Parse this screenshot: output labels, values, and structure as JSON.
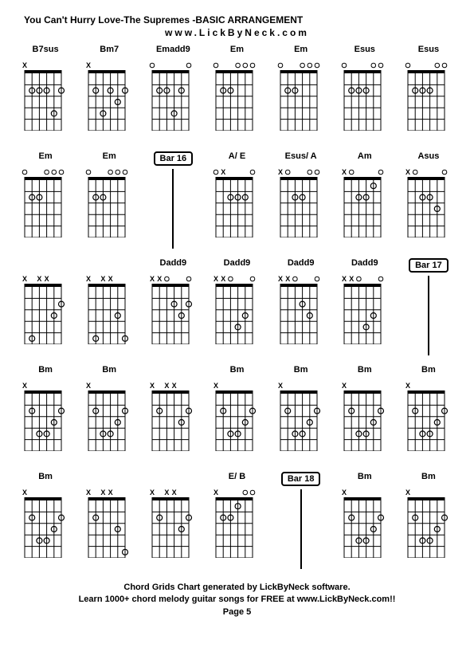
{
  "title": "You Can't Hurry Love-The Supremes -BASIC ARRANGEMENT",
  "subtitle": "www.LickByNeck.com",
  "footer_line1": "Chord Grids Chart generated by LickByNeck software.",
  "footer_line2": "Learn 1000+ chord melody guitar songs for FREE at www.LickByNeck.com!!",
  "page_label": "Page 5",
  "diagram": {
    "width": 58,
    "height": 90,
    "strings": 6,
    "frets": 5,
    "nut_height": 4,
    "line_color": "#000000",
    "dot_radius": 3.5,
    "open_radius": 2.8,
    "x_fontsize": 9
  },
  "cells": [
    {
      "type": "chord",
      "label": "B7sus",
      "mutes": [
        1,
        0,
        0,
        0,
        0,
        0
      ],
      "opens": [
        0,
        0,
        0,
        0,
        0,
        0
      ],
      "dots": [
        [
          2,
          2
        ],
        [
          3,
          2
        ],
        [
          4,
          2
        ],
        [
          5,
          4
        ],
        [
          6,
          2
        ]
      ]
    },
    {
      "type": "chord",
      "label": "Bm7",
      "mutes": [
        1,
        0,
        0,
        0,
        0,
        0
      ],
      "opens": [
        0,
        0,
        0,
        0,
        0,
        0
      ],
      "dots": [
        [
          2,
          2
        ],
        [
          3,
          4
        ],
        [
          4,
          2
        ],
        [
          5,
          3
        ],
        [
          6,
          2
        ]
      ]
    },
    {
      "type": "chord",
      "label": "Emadd9",
      "mutes": [
        0,
        0,
        0,
        0,
        0,
        0
      ],
      "opens": [
        1,
        0,
        0,
        0,
        0,
        1
      ],
      "dots": [
        [
          2,
          2
        ],
        [
          3,
          2
        ],
        [
          4,
          4
        ],
        [
          5,
          2
        ]
      ]
    },
    {
      "type": "chord",
      "label": "Em",
      "mutes": [
        0,
        0,
        0,
        0,
        0,
        0
      ],
      "opens": [
        1,
        0,
        0,
        1,
        1,
        1
      ],
      "dots": [
        [
          2,
          2
        ],
        [
          3,
          2
        ]
      ]
    },
    {
      "type": "chord",
      "label": "Em",
      "mutes": [
        0,
        0,
        0,
        0,
        0,
        0
      ],
      "opens": [
        1,
        0,
        0,
        1,
        1,
        1
      ],
      "dots": [
        [
          2,
          2
        ],
        [
          3,
          2
        ]
      ]
    },
    {
      "type": "chord",
      "label": "Esus",
      "mutes": [
        0,
        0,
        0,
        0,
        0,
        0
      ],
      "opens": [
        1,
        0,
        0,
        0,
        1,
        1
      ],
      "dots": [
        [
          2,
          2
        ],
        [
          3,
          2
        ],
        [
          4,
          2
        ]
      ]
    },
    {
      "type": "chord",
      "label": "Esus",
      "mutes": [
        0,
        0,
        0,
        0,
        0,
        0
      ],
      "opens": [
        1,
        0,
        0,
        0,
        1,
        1
      ],
      "dots": [
        [
          2,
          2
        ],
        [
          3,
          2
        ],
        [
          4,
          2
        ]
      ]
    },
    {
      "type": "chord",
      "label": "Em",
      "mutes": [
        0,
        0,
        0,
        0,
        0,
        0
      ],
      "opens": [
        1,
        0,
        0,
        1,
        1,
        1
      ],
      "dots": [
        [
          2,
          2
        ],
        [
          3,
          2
        ]
      ]
    },
    {
      "type": "chord",
      "label": "Em",
      "mutes": [
        0,
        0,
        0,
        0,
        0,
        0
      ],
      "opens": [
        1,
        0,
        0,
        1,
        1,
        1
      ],
      "dots": [
        [
          2,
          2
        ],
        [
          3,
          2
        ]
      ]
    },
    {
      "type": "bar",
      "label": "Bar 16"
    },
    {
      "type": "chord",
      "label": "A/ E",
      "mutes": [
        0,
        1,
        0,
        0,
        0,
        0
      ],
      "opens": [
        1,
        0,
        0,
        0,
        0,
        1
      ],
      "dots": [
        [
          3,
          2
        ],
        [
          4,
          2
        ],
        [
          5,
          2
        ]
      ]
    },
    {
      "type": "chord",
      "label": "Esus/ A",
      "mutes": [
        1,
        0,
        0,
        0,
        0,
        0
      ],
      "opens": [
        0,
        1,
        0,
        0,
        1,
        1
      ],
      "dots": [
        [
          3,
          2
        ],
        [
          4,
          2
        ]
      ]
    },
    {
      "type": "chord",
      "label": "Am",
      "mutes": [
        1,
        0,
        0,
        0,
        0,
        0
      ],
      "opens": [
        0,
        1,
        0,
        0,
        0,
        1
      ],
      "dots": [
        [
          3,
          2
        ],
        [
          4,
          2
        ],
        [
          5,
          1
        ]
      ]
    },
    {
      "type": "chord",
      "label": "Asus",
      "mutes": [
        1,
        0,
        0,
        0,
        0,
        0
      ],
      "opens": [
        0,
        1,
        0,
        0,
        0,
        1
      ],
      "dots": [
        [
          3,
          2
        ],
        [
          4,
          2
        ],
        [
          5,
          3
        ]
      ]
    },
    {
      "type": "chord",
      "label": "",
      "mutes": [
        1,
        0,
        1,
        1,
        0,
        0
      ],
      "opens": [
        0,
        0,
        0,
        0,
        0,
        0
      ],
      "dots": [
        [
          2,
          5
        ],
        [
          5,
          3
        ],
        [
          6,
          2
        ]
      ]
    },
    {
      "type": "chord",
      "label": "",
      "mutes": [
        1,
        0,
        1,
        1,
        0,
        0
      ],
      "opens": [
        0,
        0,
        0,
        0,
        0,
        0
      ],
      "dots": [
        [
          2,
          5
        ],
        [
          5,
          3
        ],
        [
          6,
          5
        ]
      ]
    },
    {
      "type": "chord",
      "label": "Dadd9",
      "mutes": [
        1,
        1,
        0,
        0,
        0,
        0
      ],
      "opens": [
        0,
        0,
        1,
        0,
        0,
        1
      ],
      "dots": [
        [
          4,
          2
        ],
        [
          5,
          3
        ],
        [
          6,
          2
        ]
      ]
    },
    {
      "type": "chord",
      "label": "Dadd9",
      "mutes": [
        1,
        1,
        0,
        0,
        0,
        0
      ],
      "opens": [
        0,
        0,
        1,
        0,
        0,
        1
      ],
      "dots": [
        [
          4,
          4
        ],
        [
          5,
          3
        ]
      ]
    },
    {
      "type": "chord",
      "label": "Dadd9",
      "mutes": [
        1,
        1,
        0,
        0,
        0,
        0
      ],
      "opens": [
        0,
        0,
        1,
        0,
        0,
        1
      ],
      "dots": [
        [
          4,
          2
        ],
        [
          5,
          3
        ]
      ]
    },
    {
      "type": "chord",
      "label": "Dadd9",
      "mutes": [
        1,
        1,
        0,
        0,
        0,
        0
      ],
      "opens": [
        0,
        0,
        1,
        0,
        0,
        1
      ],
      "dots": [
        [
          4,
          4
        ],
        [
          5,
          3
        ]
      ]
    },
    {
      "type": "bar",
      "label": "Bar 17"
    },
    {
      "type": "chord",
      "label": "Bm",
      "mutes": [
        1,
        0,
        0,
        0,
        0,
        0
      ],
      "opens": [
        0,
        0,
        0,
        0,
        0,
        0
      ],
      "dots": [
        [
          2,
          2
        ],
        [
          3,
          4
        ],
        [
          4,
          4
        ],
        [
          5,
          3
        ],
        [
          6,
          2
        ]
      ]
    },
    {
      "type": "chord",
      "label": "Bm",
      "mutes": [
        1,
        0,
        0,
        0,
        0,
        0
      ],
      "opens": [
        0,
        0,
        0,
        0,
        0,
        0
      ],
      "dots": [
        [
          2,
          2
        ],
        [
          3,
          4
        ],
        [
          4,
          4
        ],
        [
          5,
          3
        ],
        [
          6,
          2
        ]
      ]
    },
    {
      "type": "chord",
      "label": "",
      "mutes": [
        1,
        0,
        1,
        1,
        0,
        0
      ],
      "opens": [
        0,
        0,
        0,
        0,
        0,
        0
      ],
      "dots": [
        [
          2,
          2
        ],
        [
          5,
          3
        ],
        [
          6,
          2
        ]
      ]
    },
    {
      "type": "chord",
      "label": "Bm",
      "mutes": [
        1,
        0,
        0,
        0,
        0,
        0
      ],
      "opens": [
        0,
        0,
        0,
        0,
        0,
        0
      ],
      "dots": [
        [
          2,
          2
        ],
        [
          3,
          4
        ],
        [
          4,
          4
        ],
        [
          5,
          3
        ],
        [
          6,
          2
        ]
      ]
    },
    {
      "type": "chord",
      "label": "Bm",
      "mutes": [
        1,
        0,
        0,
        0,
        0,
        0
      ],
      "opens": [
        0,
        0,
        0,
        0,
        0,
        0
      ],
      "dots": [
        [
          2,
          2
        ],
        [
          3,
          4
        ],
        [
          4,
          4
        ],
        [
          5,
          3
        ],
        [
          6,
          2
        ]
      ]
    },
    {
      "type": "chord",
      "label": "Bm",
      "mutes": [
        1,
        0,
        0,
        0,
        0,
        0
      ],
      "opens": [
        0,
        0,
        0,
        0,
        0,
        0
      ],
      "dots": [
        [
          2,
          2
        ],
        [
          3,
          4
        ],
        [
          4,
          4
        ],
        [
          5,
          3
        ],
        [
          6,
          2
        ]
      ]
    },
    {
      "type": "chord",
      "label": "Bm",
      "mutes": [
        1,
        0,
        0,
        0,
        0,
        0
      ],
      "opens": [
        0,
        0,
        0,
        0,
        0,
        0
      ],
      "dots": [
        [
          2,
          2
        ],
        [
          3,
          4
        ],
        [
          4,
          4
        ],
        [
          5,
          3
        ],
        [
          6,
          2
        ]
      ]
    },
    {
      "type": "chord",
      "label": "Bm",
      "mutes": [
        1,
        0,
        0,
        0,
        0,
        0
      ],
      "opens": [
        0,
        0,
        0,
        0,
        0,
        0
      ],
      "dots": [
        [
          2,
          2
        ],
        [
          3,
          4
        ],
        [
          4,
          4
        ],
        [
          5,
          3
        ],
        [
          6,
          2
        ]
      ]
    },
    {
      "type": "chord",
      "label": "",
      "mutes": [
        1,
        0,
        1,
        1,
        0,
        0
      ],
      "opens": [
        0,
        0,
        0,
        0,
        0,
        0
      ],
      "dots": [
        [
          2,
          2
        ],
        [
          5,
          3
        ],
        [
          6,
          5
        ]
      ]
    },
    {
      "type": "chord",
      "label": "",
      "mutes": [
        1,
        0,
        1,
        1,
        0,
        0
      ],
      "opens": [
        0,
        0,
        0,
        0,
        0,
        0
      ],
      "dots": [
        [
          2,
          2
        ],
        [
          5,
          3
        ],
        [
          6,
          2
        ]
      ]
    },
    {
      "type": "chord",
      "label": "E/ B",
      "mutes": [
        1,
        0,
        0,
        0,
        0,
        0
      ],
      "opens": [
        0,
        0,
        0,
        0,
        1,
        1
      ],
      "dots": [
        [
          2,
          2
        ],
        [
          3,
          2
        ],
        [
          4,
          1
        ]
      ]
    },
    {
      "type": "bar",
      "label": "Bar 18"
    },
    {
      "type": "chord",
      "label": "Bm",
      "mutes": [
        1,
        0,
        0,
        0,
        0,
        0
      ],
      "opens": [
        0,
        0,
        0,
        0,
        0,
        0
      ],
      "dots": [
        [
          2,
          2
        ],
        [
          3,
          4
        ],
        [
          4,
          4
        ],
        [
          5,
          3
        ],
        [
          6,
          2
        ]
      ]
    },
    {
      "type": "chord",
      "label": "Bm",
      "mutes": [
        1,
        0,
        0,
        0,
        0,
        0
      ],
      "opens": [
        0,
        0,
        0,
        0,
        0,
        0
      ],
      "dots": [
        [
          2,
          2
        ],
        [
          3,
          4
        ],
        [
          4,
          4
        ],
        [
          5,
          3
        ],
        [
          6,
          2
        ]
      ]
    }
  ]
}
